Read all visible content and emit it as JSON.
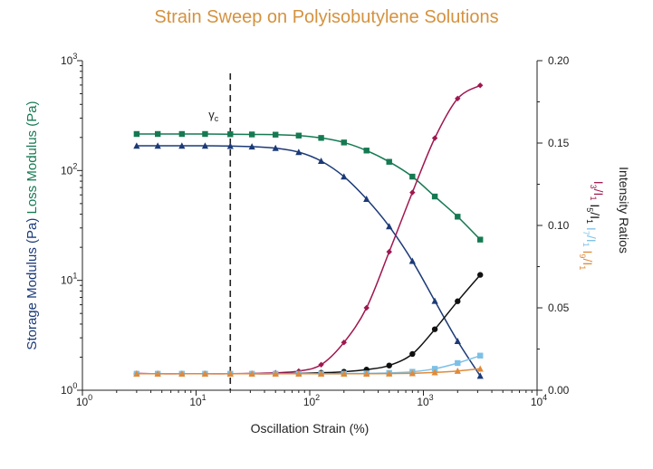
{
  "chart_data": {
    "type": "line",
    "title": "Strain Sweep on Polyisobutylene Solutions",
    "xlabel": "Oscillation Strain (%)",
    "x_scale": "log",
    "xlim": [
      1,
      10000
    ],
    "x_ticks": [
      {
        "base": "10",
        "exp": "0"
      },
      {
        "base": "10",
        "exp": "1"
      },
      {
        "base": "10",
        "exp": "2"
      },
      {
        "base": "10",
        "exp": "3"
      },
      {
        "base": "10",
        "exp": "4"
      }
    ],
    "left_axis": {
      "label_storage": "Storage Modulus (Pa)",
      "label_loss": "Loss Modulus (Pa)",
      "scale": "log",
      "ylim": [
        1,
        1000
      ],
      "ticks": [
        {
          "base": "10",
          "exp": "0"
        },
        {
          "base": "10",
          "exp": "1"
        },
        {
          "base": "10",
          "exp": "2"
        },
        {
          "base": "10",
          "exp": "3"
        }
      ]
    },
    "right_axis": {
      "label": "Intensity Ratios",
      "scale": "linear",
      "ylim": [
        0,
        0.2
      ],
      "ticks": [
        "0.00",
        "0.05",
        "0.10",
        "0.15",
        "0.20"
      ]
    },
    "legend_ratios": [
      {
        "a": "3",
        "b": "1",
        "color": "#a0174f"
      },
      {
        "a": "5",
        "b": "1",
        "color": "#111111"
      },
      {
        "a": "7",
        "b": "1",
        "color": "#7cc0e6"
      },
      {
        "a": "9",
        "b": "1",
        "color": "#e08a3a"
      }
    ],
    "critical_strain": {
      "label": "γ",
      "sub": "c",
      "x": 20
    },
    "x": [
      3,
      4.6,
      7.5,
      12,
      20,
      31,
      50,
      80,
      126,
      200,
      316,
      500,
      800,
      1260,
      2000,
      3160
    ],
    "series": [
      {
        "name": "Loss Modulus",
        "axis": "left",
        "color": "#157a52",
        "marker": "square",
        "values": [
          215,
          215,
          215,
          215,
          214,
          213,
          212,
          208,
          198,
          180,
          152,
          120,
          88,
          58,
          38,
          23.5
        ]
      },
      {
        "name": "Storage Modulus",
        "axis": "left",
        "color": "#1c3a78",
        "marker": "triangle",
        "values": [
          168,
          168,
          168,
          168,
          167,
          165,
          160,
          147,
          122,
          88,
          55,
          31,
          15,
          6.5,
          2.8,
          1.35
        ]
      },
      {
        "name": "I3/I1",
        "axis": "right",
        "color": "#a0174f",
        "marker": "diamond",
        "values": [
          0.0102,
          0.01,
          0.01,
          0.01,
          0.01,
          0.0102,
          0.0106,
          0.0116,
          0.0155,
          0.029,
          0.05,
          0.084,
          0.12,
          0.153,
          0.177,
          0.185
        ]
      },
      {
        "name": "I5/I1",
        "axis": "right",
        "color": "#111111",
        "marker": "circle",
        "values": [
          0.01,
          0.01,
          0.01,
          0.01,
          0.01,
          0.01,
          0.01,
          0.0102,
          0.0106,
          0.0112,
          0.0125,
          0.015,
          0.022,
          0.037,
          0.054,
          0.07
        ]
      },
      {
        "name": "I7/I1",
        "axis": "right",
        "color": "#7cc0e6",
        "marker": "square",
        "values": [
          0.01,
          0.01,
          0.01,
          0.01,
          0.01,
          0.01,
          0.01,
          0.01,
          0.01,
          0.01,
          0.0102,
          0.0105,
          0.0112,
          0.013,
          0.0165,
          0.021
        ]
      },
      {
        "name": "I9/I1",
        "axis": "right",
        "color": "#e08a3a",
        "marker": "triangle",
        "values": [
          0.01,
          0.01,
          0.01,
          0.01,
          0.01,
          0.01,
          0.01,
          0.01,
          0.01,
          0.01,
          0.01,
          0.0101,
          0.0103,
          0.0108,
          0.0117,
          0.013
        ]
      }
    ]
  }
}
